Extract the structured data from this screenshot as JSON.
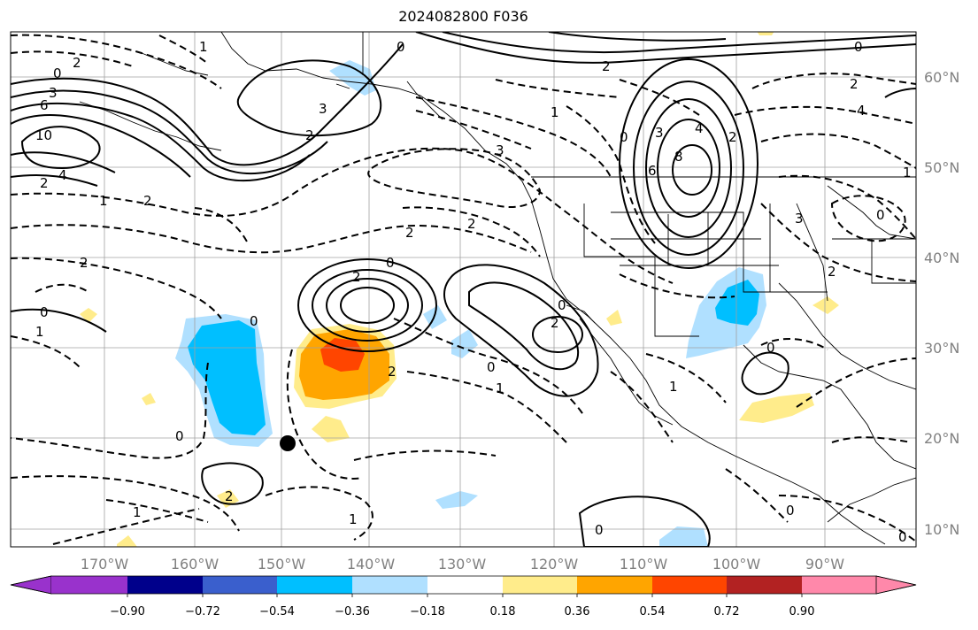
{
  "title": "2024082800 F036",
  "lon_labels": [
    "170°W",
    "160°W",
    "150°W",
    "140°W",
    "130°W",
    "120°W",
    "110°W",
    "100°W",
    "90°W"
  ],
  "lat_labels": [
    "60°N",
    "50°N",
    "40°N",
    "30°N",
    "20°N",
    "10°N"
  ],
  "colorbar": {
    "ticks": [
      "−0.90",
      "−0.72",
      "−0.54",
      "−0.36",
      "−0.18",
      "0.18",
      "0.36",
      "0.54",
      "0.72",
      "0.90"
    ],
    "colors": [
      "#9932cc",
      "#00008b",
      "#3a5fcd",
      "#00bfff",
      "#b0e0ff",
      "#ffffff",
      "#ffec8b",
      "#ffa500",
      "#ff4500",
      "#b22222",
      "#ff88aa"
    ]
  },
  "contour_labels": [
    "0",
    "2",
    "3",
    "6",
    "10",
    "4",
    "2",
    "1",
    "2",
    "3",
    "2",
    "1",
    "0",
    "2",
    "1",
    "0",
    "3",
    "2",
    "2",
    "2",
    "2",
    "0",
    "6",
    "3",
    "4",
    "8",
    "2",
    "4",
    "2",
    "3",
    "1",
    "0",
    "1",
    "2",
    "2",
    "0",
    "0",
    "2",
    "1",
    "0",
    "1",
    "0",
    "0",
    "0",
    "1",
    "2",
    "0",
    "0",
    "0",
    "1",
    "0"
  ],
  "markers": [
    {
      "name": "storm-center",
      "lon": -150,
      "lat": 19.5
    }
  ]
}
